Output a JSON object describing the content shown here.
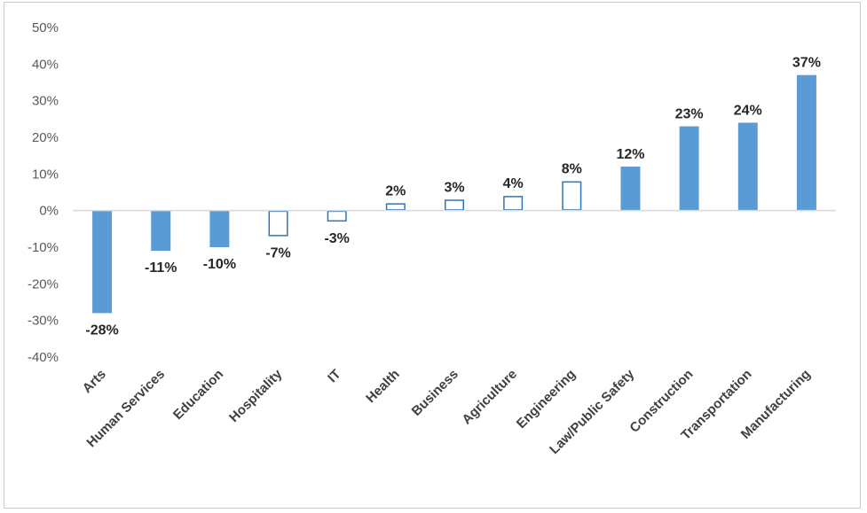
{
  "chart_data": {
    "type": "bar",
    "categories": [
      "Arts",
      "Human Services",
      "Education",
      "Hospitality",
      "IT",
      "Health",
      "Business",
      "Agriculture",
      "Engineering",
      "Law/Public Safety",
      "Construction",
      "Transportation",
      "Manufacturing"
    ],
    "values": [
      -28,
      -11,
      -10,
      -7,
      -3,
      2,
      3,
      4,
      8,
      12,
      23,
      24,
      37
    ],
    "data_labels": [
      "-28%",
      "-11%",
      "-10%",
      "-7%",
      "-3%",
      "2%",
      "3%",
      "4%",
      "8%",
      "12%",
      "23%",
      "24%",
      "37%"
    ],
    "bar_filled": [
      true,
      true,
      true,
      false,
      false,
      false,
      false,
      false,
      false,
      true,
      true,
      true,
      true
    ],
    "ylim": [
      -40,
      50
    ],
    "yticks": [
      50,
      40,
      30,
      20,
      10,
      0,
      -10,
      -20,
      -30,
      -40
    ],
    "ytick_labels": [
      "50%",
      "40%",
      "30%",
      "20%",
      "10%",
      "0%",
      "-10%",
      "-20%",
      "-30%",
      "-40%"
    ],
    "title": "",
    "xlabel": "",
    "ylabel": "",
    "grid": false,
    "legend": "none",
    "colors": {
      "bar": "#5b9bd5",
      "bar_outline": "#2e75b6",
      "axis": "#d9d9d9"
    }
  }
}
